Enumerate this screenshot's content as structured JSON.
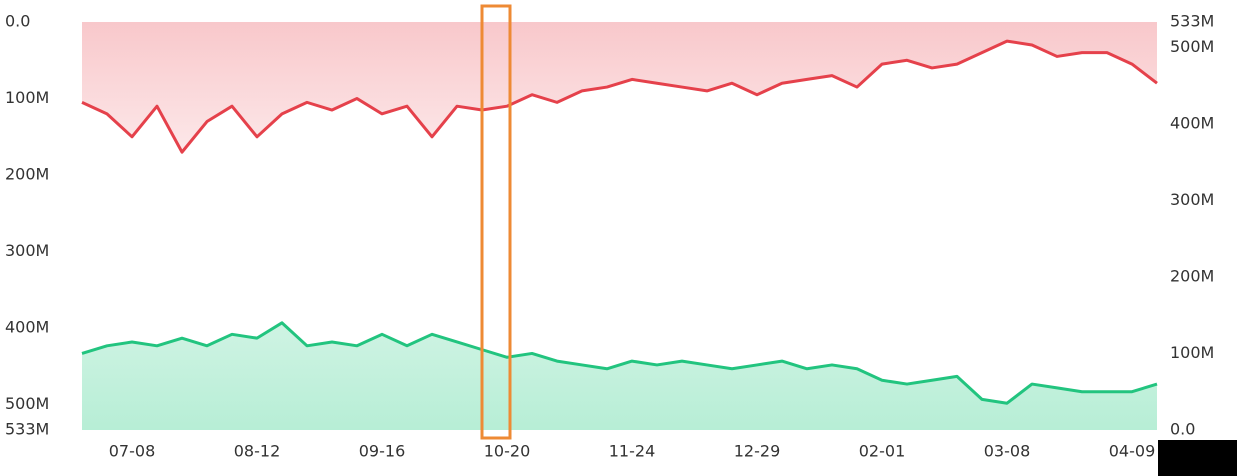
{
  "chart_data": {
    "type": "line",
    "categories": [
      null,
      null,
      "07-08",
      null,
      null,
      null,
      null,
      "08-12",
      null,
      null,
      null,
      null,
      "09-16",
      null,
      null,
      null,
      null,
      "10-20",
      null,
      null,
      null,
      null,
      "11-24",
      null,
      null,
      null,
      null,
      "12-29",
      null,
      null,
      null,
      null,
      "02-01",
      null,
      null,
      null,
      null,
      "03-08",
      null,
      null,
      null,
      null,
      "04-09",
      null
    ],
    "series": [
      {
        "color": "#e5414b",
        "axis": "y",
        "values": [
          105000000,
          120000000,
          150000000,
          110000000,
          170000000,
          130000000,
          110000000,
          150000000,
          120000000,
          105000000,
          115000000,
          100000000,
          120000000,
          110000000,
          150000000,
          110000000,
          115000000,
          110000000,
          95000000,
          105000000,
          90000000,
          85000000,
          75000000,
          80000000,
          85000000,
          90000000,
          80000000,
          95000000,
          80000000,
          75000000,
          70000000,
          85000000,
          55000000,
          50000000,
          60000000,
          55000000,
          40000000,
          25000000,
          30000000,
          45000000,
          40000000,
          40000000,
          55000000,
          80000000
        ]
      },
      {
        "color": "#22c47f",
        "axis": "y2",
        "values": [
          100000000,
          110000000,
          115000000,
          110000000,
          120000000,
          110000000,
          125000000,
          120000000,
          140000000,
          110000000,
          115000000,
          110000000,
          125000000,
          110000000,
          125000000,
          115000000,
          105000000,
          95000000,
          100000000,
          90000000,
          85000000,
          80000000,
          90000000,
          85000000,
          90000000,
          85000000,
          80000000,
          85000000,
          90000000,
          80000000,
          85000000,
          80000000,
          65000000,
          60000000,
          65000000,
          70000000,
          40000000,
          35000000,
          60000000,
          55000000,
          50000000,
          50000000,
          50000000,
          60000000
        ]
      }
    ],
    "ylim": [
      0,
      533000000
    ],
    "yinverted": true,
    "yticks": [
      {
        "value": 0,
        "label": "0.0"
      },
      {
        "value": 100000000,
        "label": "100M"
      },
      {
        "value": 200000000,
        "label": "200M"
      },
      {
        "value": 300000000,
        "label": "300M"
      },
      {
        "value": 400000000,
        "label": "400M"
      },
      {
        "value": 500000000,
        "label": "500M"
      },
      {
        "value": 533000000,
        "label": "533M"
      }
    ],
    "y2lim": [
      0,
      533000000
    ],
    "y2ticks": [
      {
        "value": 0,
        "label": "0.0"
      },
      {
        "value": 100000000,
        "label": "100M"
      },
      {
        "value": 200000000,
        "label": "200M"
      },
      {
        "value": 300000000,
        "label": "300M"
      },
      {
        "value": 400000000,
        "label": "400M"
      },
      {
        "value": 500000000,
        "label": "500M"
      },
      {
        "value": 533000000,
        "label": "533M"
      }
    ],
    "grid": false
  }
}
